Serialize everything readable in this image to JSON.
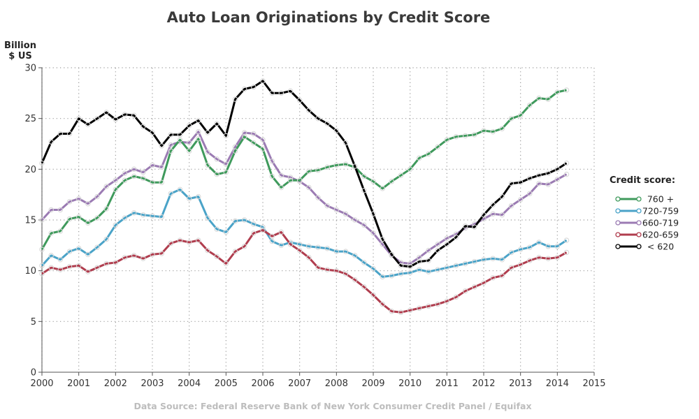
{
  "chart_data": {
    "type": "line",
    "title": "Auto Loan Originations by Credit Score",
    "ylabel_line1": "Billion",
    "ylabel_line2": "$ US",
    "xlabel": "",
    "xlim": [
      2000,
      2015
    ],
    "ylim": [
      0,
      30
    ],
    "x_ticks": [
      2000,
      2001,
      2002,
      2003,
      2004,
      2005,
      2006,
      2007,
      2008,
      2009,
      2010,
      2011,
      2012,
      2013,
      2014,
      2015
    ],
    "y_ticks": [
      0,
      5,
      10,
      15,
      20,
      25,
      30
    ],
    "grid": "dotted",
    "legend_title": "Credit score:",
    "legend_position": "right",
    "source": "Data Source: Federal Reserve Bank of New York Consumer Credit Panel / Equifax",
    "x": [
      2000.0,
      2000.25,
      2000.5,
      2000.75,
      2001.0,
      2001.25,
      2001.5,
      2001.75,
      2002.0,
      2002.25,
      2002.5,
      2002.75,
      2003.0,
      2003.25,
      2003.5,
      2003.75,
      2004.0,
      2004.25,
      2004.5,
      2004.75,
      2005.0,
      2005.25,
      2005.5,
      2005.75,
      2006.0,
      2006.25,
      2006.5,
      2006.75,
      2007.0,
      2007.25,
      2007.5,
      2007.75,
      2008.0,
      2008.25,
      2008.5,
      2008.75,
      2009.0,
      2009.25,
      2009.5,
      2009.75,
      2010.0,
      2010.25,
      2010.5,
      2010.75,
      2011.0,
      2011.25,
      2011.5,
      2011.75,
      2012.0,
      2012.25,
      2012.5,
      2012.75,
      2013.0,
      2013.25,
      2013.5,
      2013.75,
      2014.0,
      2014.25
    ],
    "series": [
      {
        "name": "760 +",
        "color": "#3f9a5c",
        "values": [
          12.1,
          13.7,
          13.9,
          15.1,
          15.3,
          14.7,
          15.2,
          16.1,
          18.0,
          18.9,
          19.3,
          19.1,
          18.7,
          18.7,
          21.8,
          22.9,
          21.8,
          23.0,
          20.4,
          19.5,
          19.7,
          21.8,
          23.2,
          22.6,
          22.0,
          19.3,
          18.2,
          18.9,
          18.9,
          19.8,
          19.9,
          20.2,
          20.4,
          20.5,
          20.2,
          19.3,
          18.8,
          18.1,
          18.8,
          19.4,
          20.0,
          21.1,
          21.5,
          22.2,
          22.9,
          23.2,
          23.3,
          23.4,
          23.8,
          23.7,
          24.0,
          25.0,
          25.3,
          26.3,
          27.0,
          26.9,
          27.6,
          27.8
        ]
      },
      {
        "name": "720-759",
        "color": "#4aa3c8",
        "values": [
          10.5,
          11.5,
          11.1,
          11.9,
          12.2,
          11.6,
          12.3,
          13.1,
          14.5,
          15.2,
          15.7,
          15.5,
          15.4,
          15.3,
          17.6,
          18.0,
          17.1,
          17.3,
          15.2,
          14.1,
          13.8,
          14.9,
          15.0,
          14.6,
          14.3,
          12.9,
          12.5,
          12.8,
          12.6,
          12.4,
          12.3,
          12.2,
          11.9,
          11.9,
          11.5,
          10.8,
          10.2,
          9.4,
          9.5,
          9.7,
          9.8,
          10.1,
          9.9,
          10.1,
          10.3,
          10.5,
          10.7,
          10.9,
          11.1,
          11.2,
          11.1,
          11.8,
          12.1,
          12.3,
          12.8,
          12.4,
          12.4,
          13.0
        ]
      },
      {
        "name": "660-719",
        "color": "#9b7bb3",
        "values": [
          15.0,
          16.0,
          16.0,
          16.8,
          17.1,
          16.6,
          17.3,
          18.3,
          18.9,
          19.6,
          20.0,
          19.7,
          20.4,
          20.2,
          22.4,
          22.7,
          22.6,
          23.7,
          21.7,
          21.0,
          20.5,
          22.2,
          23.6,
          23.5,
          22.9,
          20.8,
          19.4,
          19.2,
          18.8,
          18.2,
          17.2,
          16.4,
          16.0,
          15.6,
          15.0,
          14.5,
          13.7,
          12.6,
          11.5,
          10.8,
          10.7,
          11.3,
          12.0,
          12.6,
          13.2,
          13.6,
          14.2,
          14.6,
          15.1,
          15.6,
          15.5,
          16.4,
          17.0,
          17.6,
          18.6,
          18.5,
          19.0,
          19.5
        ]
      },
      {
        "name": "620-659",
        "color": "#b03d4e",
        "values": [
          9.7,
          10.3,
          10.1,
          10.4,
          10.5,
          9.9,
          10.3,
          10.7,
          10.8,
          11.3,
          11.5,
          11.2,
          11.6,
          11.7,
          12.7,
          13.0,
          12.8,
          13.0,
          12.0,
          11.4,
          10.7,
          11.9,
          12.4,
          13.7,
          14.0,
          13.4,
          13.8,
          12.6,
          12.0,
          11.3,
          10.3,
          10.1,
          10.0,
          9.7,
          9.1,
          8.4,
          7.6,
          6.7,
          6.0,
          5.9,
          6.1,
          6.3,
          6.5,
          6.7,
          7.0,
          7.4,
          8.0,
          8.4,
          8.8,
          9.3,
          9.5,
          10.3,
          10.6,
          11.0,
          11.3,
          11.2,
          11.3,
          11.8
        ]
      },
      {
        "name": "< 620",
        "color": "#000000",
        "values": [
          20.6,
          22.7,
          23.5,
          23.5,
          25.0,
          24.4,
          25.0,
          25.6,
          24.9,
          25.4,
          25.3,
          24.2,
          23.6,
          22.3,
          23.4,
          23.4,
          24.3,
          24.8,
          23.6,
          24.5,
          23.3,
          26.9,
          27.9,
          28.1,
          28.7,
          27.5,
          27.5,
          27.7,
          26.8,
          25.8,
          25.0,
          24.5,
          23.8,
          22.6,
          20.3,
          17.9,
          15.6,
          13.1,
          11.6,
          10.5,
          10.4,
          10.9,
          11.0,
          12.0,
          12.6,
          13.3,
          14.4,
          14.3,
          15.5,
          16.5,
          17.3,
          18.6,
          18.7,
          19.1,
          19.4,
          19.6,
          20.0,
          20.6
        ]
      }
    ]
  }
}
